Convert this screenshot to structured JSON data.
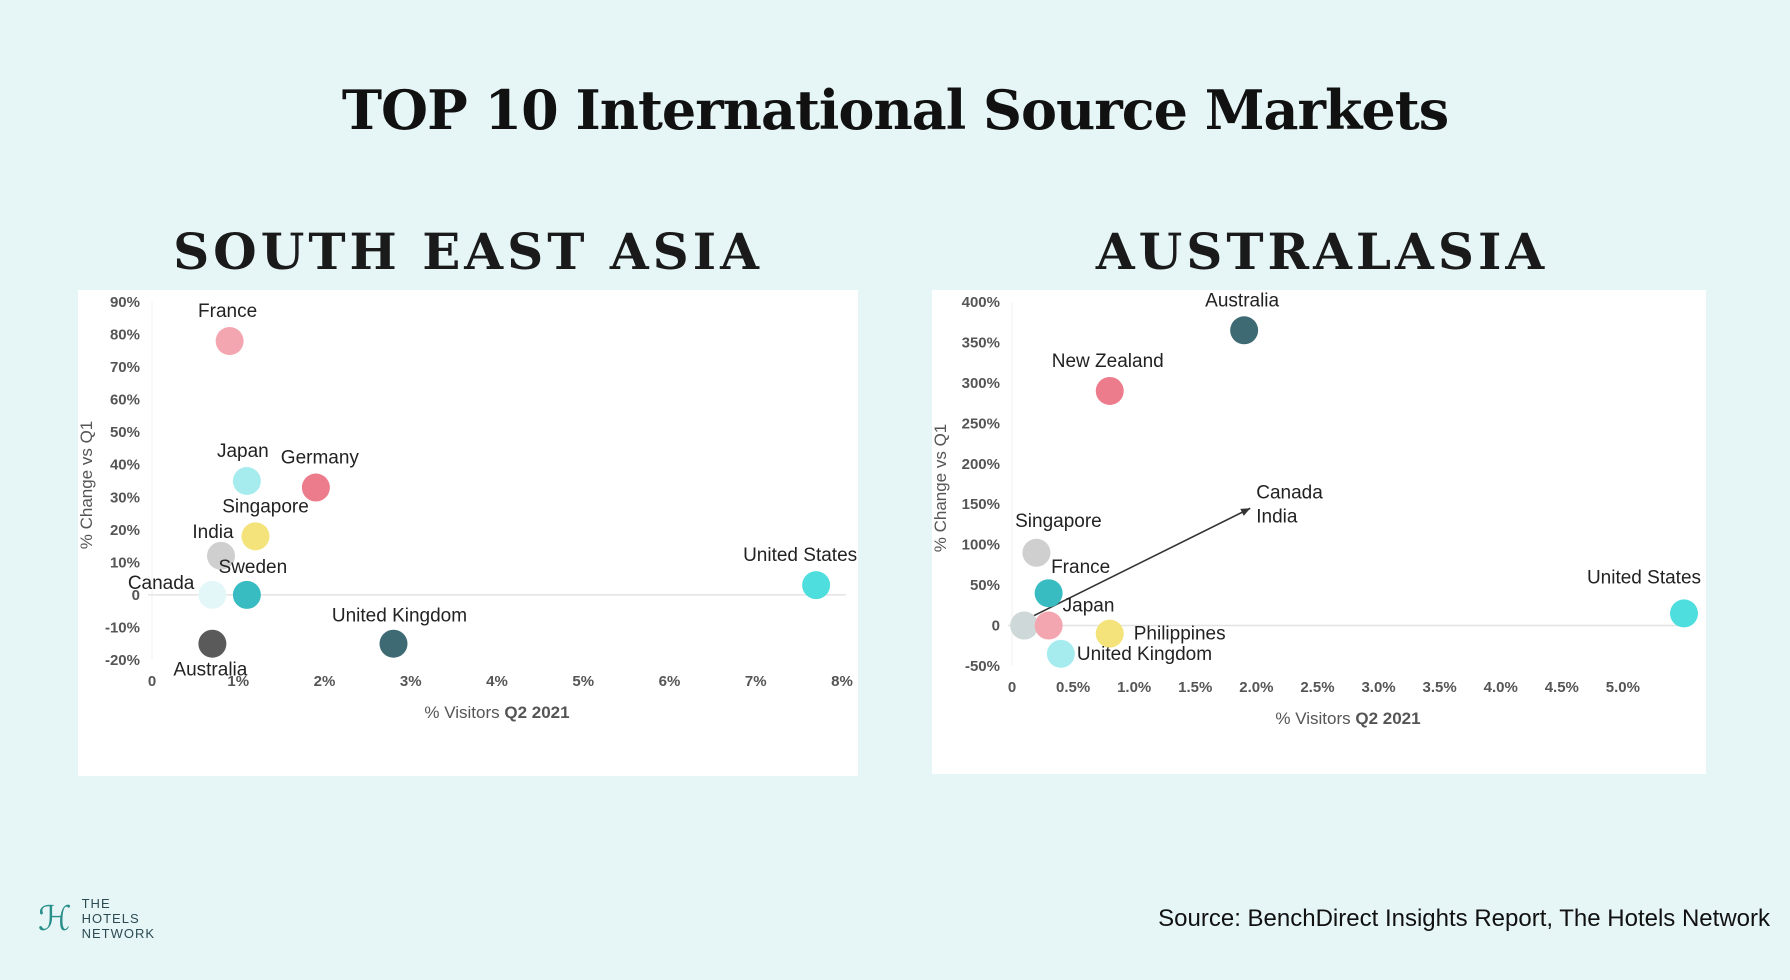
{
  "title": "TOP 10 International Source Markets",
  "source": "Source: BenchDirect Insights Report, The Hotels Network",
  "logo": {
    "line1": "THE",
    "line2": "HOTELS",
    "line3": "NETWORK",
    "icon": "hotels-network-logo-icon"
  },
  "charts": [
    {
      "region": "SOUTH EAST ASIA",
      "xlabel": "% Visitors",
      "xlabel_bold": "Q2 2021",
      "ylabel": "% Change vs Q1",
      "xticks": [
        "0",
        "1%",
        "2%",
        "3%",
        "4%",
        "5%",
        "6%",
        "7%",
        "8%"
      ],
      "yticks": [
        "-20%",
        "-10%",
        "0",
        "10%",
        "20%",
        "30%",
        "40%",
        "50%",
        "60%",
        "70%",
        "80%",
        "90%"
      ]
    },
    {
      "region": "AUSTRALASIA",
      "xlabel": "% Visitors",
      "xlabel_bold": "Q2 2021",
      "ylabel": "% Change vs Q1",
      "xticks": [
        "0",
        "0.5%",
        "1.0%",
        "1.5%",
        "2.0%",
        "2.5%",
        "3.0%",
        "3.5%",
        "4.0%",
        "4.5%",
        "5.0%"
      ],
      "yticks": [
        "-50%",
        "0",
        "50%",
        "100%",
        "150%",
        "200%",
        "250%",
        "300%",
        "350%",
        "400%"
      ],
      "annotation_labels": [
        "Canada",
        "India"
      ]
    }
  ],
  "chart_data": [
    {
      "type": "scatter",
      "title": "SOUTH EAST ASIA",
      "xlabel": "% Visitors Q2 2021",
      "ylabel": "% Change vs Q1",
      "xlim": [
        0,
        8
      ],
      "ylim": [
        -20,
        90
      ],
      "points": [
        {
          "name": "France",
          "x": 0.9,
          "y": 78,
          "color": "#f4a6b0"
        },
        {
          "name": "Japan",
          "x": 1.1,
          "y": 35,
          "color": "#a6ecee"
        },
        {
          "name": "Germany",
          "x": 1.9,
          "y": 33,
          "color": "#ec7b8b"
        },
        {
          "name": "Singapore",
          "x": 1.2,
          "y": 18,
          "color": "#f4e37a"
        },
        {
          "name": "India",
          "x": 0.8,
          "y": 12,
          "color": "#cfcfcf"
        },
        {
          "name": "Canada",
          "x": 0.7,
          "y": 0,
          "color": "#e4f7f8"
        },
        {
          "name": "Sweden",
          "x": 1.1,
          "y": 0,
          "color": "#38bcc2"
        },
        {
          "name": "Australia",
          "x": 0.7,
          "y": -15,
          "color": "#5a5a5a"
        },
        {
          "name": "United Kingdom",
          "x": 2.8,
          "y": -15,
          "color": "#3e6a74"
        },
        {
          "name": "United States",
          "x": 7.7,
          "y": 3,
          "color": "#4fdede"
        }
      ]
    },
    {
      "type": "scatter",
      "title": "AUSTRALASIA",
      "xlabel": "% Visitors Q2 2021",
      "ylabel": "% Change vs Q1",
      "xlim": [
        0,
        5.5
      ],
      "ylim": [
        -50,
        400
      ],
      "points": [
        {
          "name": "Australia",
          "x": 1.9,
          "y": 365,
          "color": "#3e6a74"
        },
        {
          "name": "New Zealand",
          "x": 0.8,
          "y": 290,
          "color": "#ec7b8b"
        },
        {
          "name": "Singapore",
          "x": 0.2,
          "y": 90,
          "color": "#cfcfcf"
        },
        {
          "name": "France",
          "x": 0.3,
          "y": 40,
          "color": "#38bcc2"
        },
        {
          "name": "Canada",
          "x": 0.1,
          "y": 0,
          "color": "#cfd8d8"
        },
        {
          "name": "India",
          "x": 0.1,
          "y": 0,
          "color": "#cfd8d8"
        },
        {
          "name": "Japan",
          "x": 0.3,
          "y": 0,
          "color": "#f4a6b0"
        },
        {
          "name": "Philippines",
          "x": 0.8,
          "y": -10,
          "color": "#f4e37a"
        },
        {
          "name": "United Kingdom",
          "x": 0.4,
          "y": -35,
          "color": "#a6ecee"
        },
        {
          "name": "United States",
          "x": 5.5,
          "y": 15,
          "color": "#4fdede"
        }
      ]
    }
  ]
}
